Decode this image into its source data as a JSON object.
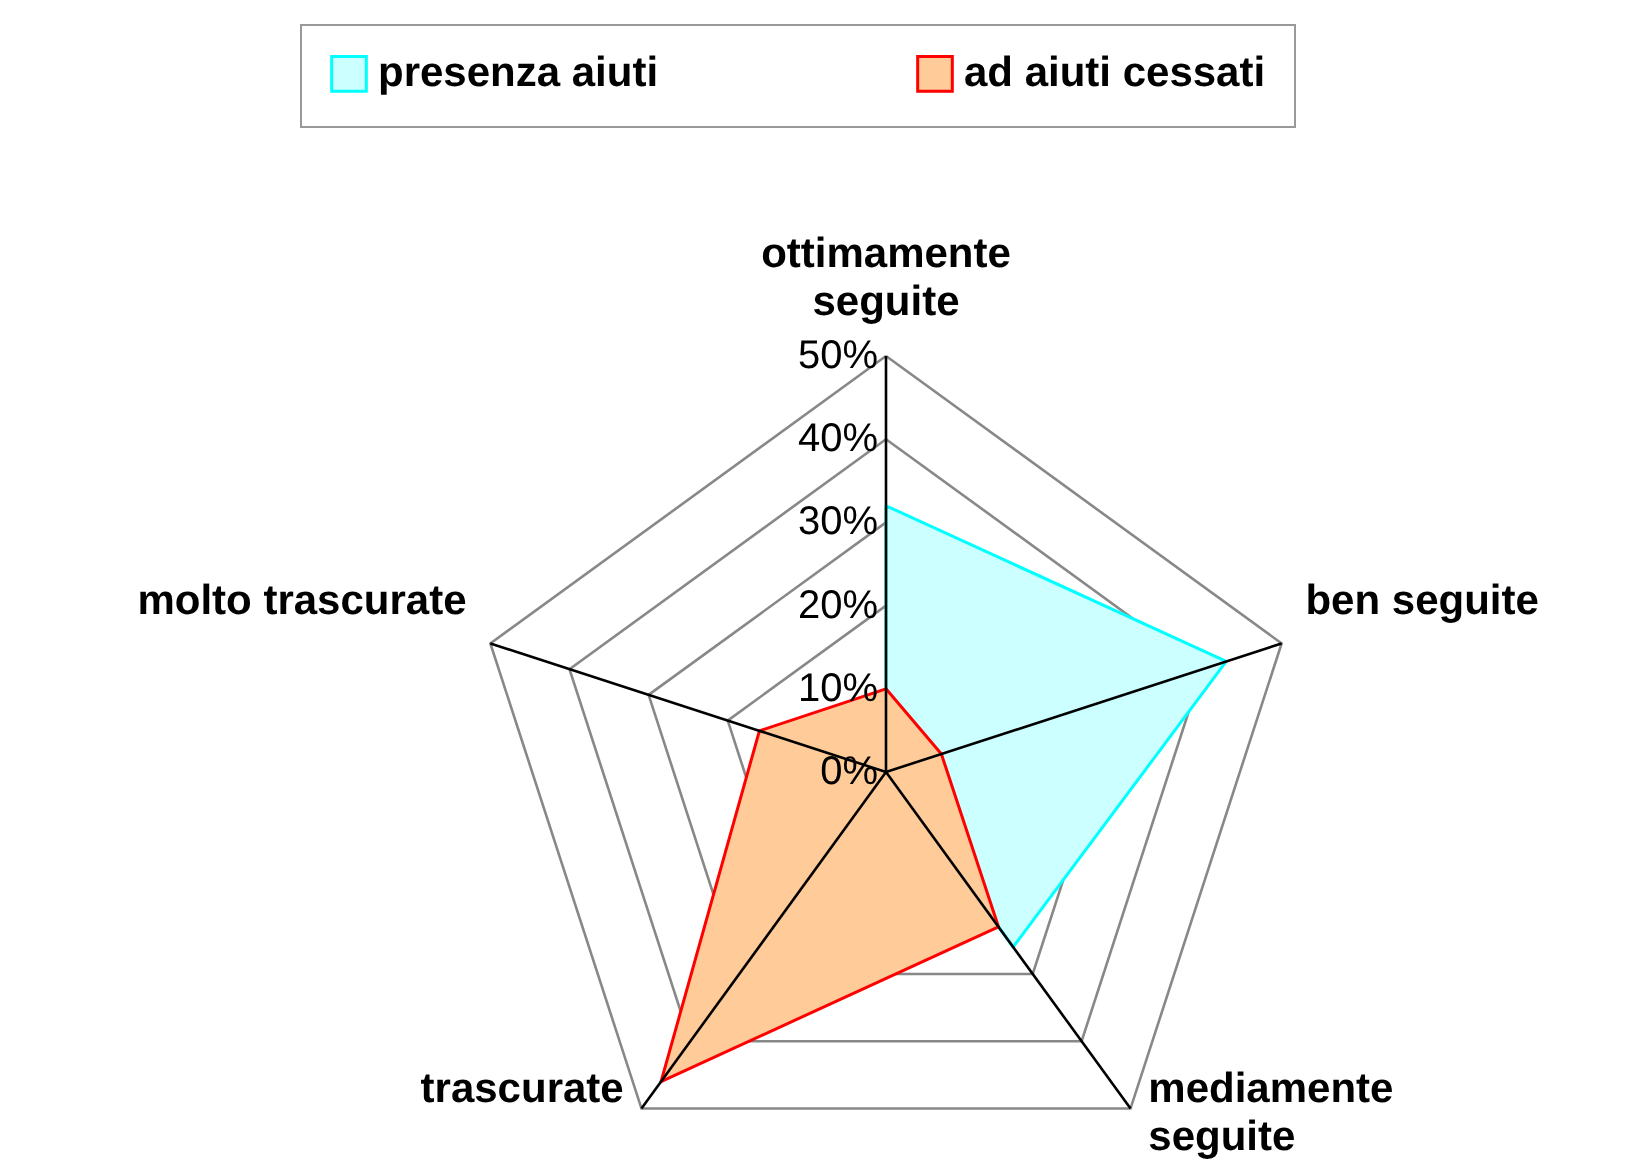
{
  "chart_data": {
    "type": "radar",
    "categories": [
      "ottimamente seguite",
      "ben seguite",
      "mediamente seguite",
      "trascurate",
      "molto trascurate"
    ],
    "series": [
      {
        "name": "presenza aiuti",
        "color": "#ccffff",
        "values": [
          32,
          43,
          26,
          0,
          0
        ]
      },
      {
        "name": "ad aiuti cessati",
        "color": "#ffcc99",
        "values": [
          10,
          7,
          23,
          46,
          16
        ]
      }
    ],
    "ylim": [
      0,
      50
    ],
    "yticks": [
      {
        "value": 0,
        "label": "0%"
      },
      {
        "value": 10,
        "label": "10%"
      },
      {
        "value": 20,
        "label": "20%"
      },
      {
        "value": 30,
        "label": "30%"
      },
      {
        "value": 40,
        "label": "40%"
      },
      {
        "value": 50,
        "label": "50%"
      }
    ],
    "grid": true,
    "legend": "top"
  }
}
